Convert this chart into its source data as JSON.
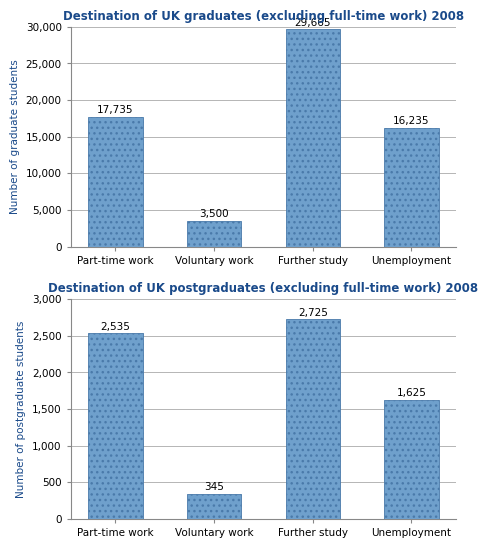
{
  "chart1": {
    "title": "Destination of UK graduates (excluding full-time work) 2008",
    "categories": [
      "Part-time work",
      "Voluntary work",
      "Further study",
      "Unemployment"
    ],
    "values": [
      17735,
      3500,
      29665,
      16235
    ],
    "labels": [
      "17,735",
      "3,500",
      "29,665",
      "16,235"
    ],
    "ylabel": "Number of graduate students",
    "ylim": [
      0,
      30000
    ],
    "yticks": [
      0,
      5000,
      10000,
      15000,
      20000,
      25000,
      30000
    ],
    "ytick_labels": [
      "0",
      "5,000",
      "10,000",
      "15,000",
      "20,000",
      "25,000",
      "30,000"
    ]
  },
  "chart2": {
    "title": "Destination of UK postgraduates (excluding full-time work) 2008",
    "categories": [
      "Part-time work",
      "Voluntary work",
      "Further study",
      "Unemployment"
    ],
    "values": [
      2535,
      345,
      2725,
      1625
    ],
    "labels": [
      "2,535",
      "345",
      "2,725",
      "1,625"
    ],
    "ylabel": "Number of postgraduate students",
    "ylim": [
      0,
      3000
    ],
    "yticks": [
      0,
      500,
      1000,
      1500,
      2000,
      2500,
      3000
    ],
    "ytick_labels": [
      "0",
      "500",
      "1,000",
      "1,500",
      "2,000",
      "2,500",
      "3,000"
    ]
  },
  "bar_color": "#6fa0cc",
  "bar_edge_color": "#4a7aaa",
  "title_color": "#1a4a8a",
  "ylabel_color": "#1a4a8a",
  "label_fontsize": 7.5,
  "title_fontsize": 8.5,
  "ylabel_fontsize": 7.5,
  "tick_fontsize": 7.5,
  "background_color": "#ffffff",
  "plot_bg_color": "#f0f0f0"
}
